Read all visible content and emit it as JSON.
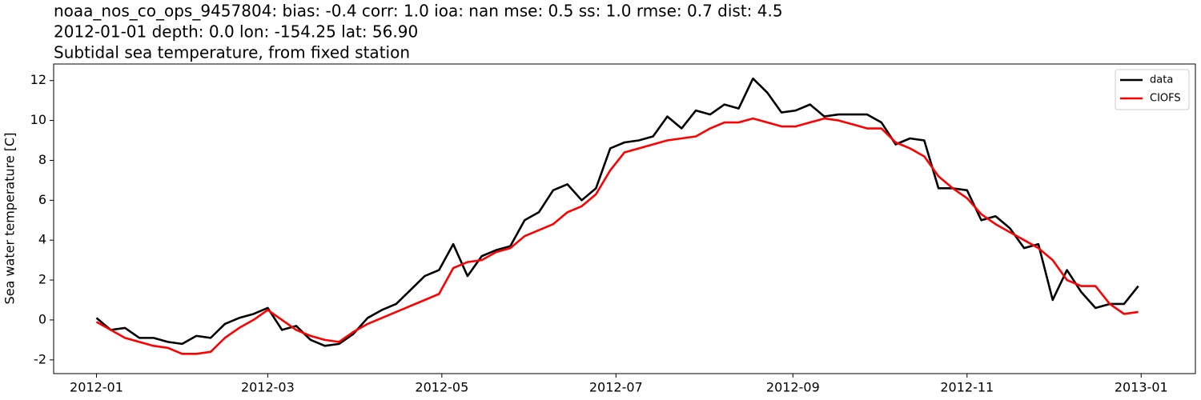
{
  "chart_data": {
    "type": "line",
    "title_lines": [
      "noaa_nos_co_ops_9457804: bias: -0.4  corr: 1.0  ioa: nan  mse: 0.5  ss: 1.0  rmse: 0.7  dist: 4.5",
      "2012-01-01 depth: 0.0 lon: -154.25 lat: 56.90",
      "Subtidal sea temperature, from fixed station"
    ],
    "y_label": "Sea water temperature [C]",
    "x": [
      "2012-01-01",
      "2012-01-06",
      "2012-01-11",
      "2012-01-16",
      "2012-01-21",
      "2012-01-26",
      "2012-01-31",
      "2012-02-05",
      "2012-02-10",
      "2012-02-15",
      "2012-02-20",
      "2012-02-25",
      "2012-03-01",
      "2012-03-06",
      "2012-03-11",
      "2012-03-16",
      "2012-03-21",
      "2012-03-26",
      "2012-03-31",
      "2012-04-05",
      "2012-04-10",
      "2012-04-15",
      "2012-04-20",
      "2012-04-25",
      "2012-04-30",
      "2012-05-05",
      "2012-05-10",
      "2012-05-15",
      "2012-05-20",
      "2012-05-25",
      "2012-05-30",
      "2012-06-04",
      "2012-06-09",
      "2012-06-14",
      "2012-06-19",
      "2012-06-24",
      "2012-06-29",
      "2012-07-04",
      "2012-07-09",
      "2012-07-14",
      "2012-07-19",
      "2012-07-24",
      "2012-07-29",
      "2012-08-03",
      "2012-08-08",
      "2012-08-13",
      "2012-08-18",
      "2012-08-23",
      "2012-08-28",
      "2012-09-02",
      "2012-09-07",
      "2012-09-12",
      "2012-09-17",
      "2012-09-22",
      "2012-09-27",
      "2012-10-02",
      "2012-10-07",
      "2012-10-12",
      "2012-10-17",
      "2012-10-22",
      "2012-10-27",
      "2012-11-01",
      "2012-11-06",
      "2012-11-11",
      "2012-11-16",
      "2012-11-21",
      "2012-11-26",
      "2012-12-01",
      "2012-12-06",
      "2012-12-11",
      "2012-12-16",
      "2012-12-21",
      "2012-12-26",
      "2012-12-31"
    ],
    "series": [
      {
        "name": "data",
        "color": "#000000",
        "values": [
          0.1,
          -0.5,
          -0.4,
          -0.9,
          -0.9,
          -1.1,
          -1.2,
          -0.8,
          -0.9,
          -0.2,
          0.1,
          0.3,
          0.6,
          -0.5,
          -0.3,
          -1.0,
          -1.3,
          -1.2,
          -0.7,
          0.1,
          0.5,
          0.8,
          1.5,
          2.2,
          2.5,
          3.8,
          2.2,
          3.2,
          3.5,
          3.7,
          5.0,
          5.4,
          6.5,
          6.8,
          6.0,
          6.6,
          8.6,
          8.9,
          9.0,
          9.2,
          10.2,
          9.6,
          10.5,
          10.3,
          10.8,
          10.6,
          12.1,
          11.4,
          10.4,
          10.5,
          10.8,
          10.2,
          10.3,
          10.3,
          10.3,
          9.9,
          8.8,
          9.1,
          9.0,
          6.6,
          6.6,
          6.5,
          5.0,
          5.2,
          4.6,
          3.6,
          3.8,
          1.0,
          2.5,
          1.4,
          0.6,
          0.8,
          0.8,
          1.7
        ]
      },
      {
        "name": "CIOFS",
        "color": "#ff0000",
        "values": [
          -0.1,
          -0.5,
          -0.9,
          -1.1,
          -1.3,
          -1.4,
          -1.7,
          -1.7,
          -1.6,
          -0.9,
          -0.4,
          0.0,
          0.5,
          0.0,
          -0.5,
          -0.8,
          -1.0,
          -1.1,
          -0.6,
          -0.2,
          0.1,
          0.4,
          0.7,
          1.0,
          1.3,
          2.6,
          2.9,
          3.0,
          3.4,
          3.6,
          4.2,
          4.5,
          4.8,
          5.4,
          5.7,
          6.3,
          7.5,
          8.4,
          8.6,
          8.8,
          9.0,
          9.1,
          9.2,
          9.6,
          9.9,
          9.9,
          10.1,
          9.9,
          9.7,
          9.7,
          9.9,
          10.1,
          10.0,
          9.8,
          9.6,
          9.6,
          8.9,
          8.6,
          8.2,
          7.2,
          6.6,
          6.1,
          5.3,
          4.8,
          4.4,
          4.0,
          3.6,
          3.0,
          2.0,
          1.7,
          1.7,
          0.8,
          0.3,
          0.4
        ]
      }
    ],
    "xlim": [
      "2011-12-17",
      "2013-01-20"
    ],
    "xticks": [
      {
        "value": "2012-01-01",
        "label": "2012-01"
      },
      {
        "value": "2012-03-01",
        "label": "2012-03"
      },
      {
        "value": "2012-05-01",
        "label": "2012-05"
      },
      {
        "value": "2012-07-01",
        "label": "2012-07"
      },
      {
        "value": "2012-09-01",
        "label": "2012-09"
      },
      {
        "value": "2012-11-01",
        "label": "2012-11"
      },
      {
        "value": "2013-01-01",
        "label": "2013-01"
      }
    ],
    "ylim": [
      -2.69,
      12.83
    ],
    "yticks": [
      -2,
      0,
      2,
      4,
      6,
      8,
      10,
      12
    ],
    "legend": "upper right",
    "grid": false
  }
}
